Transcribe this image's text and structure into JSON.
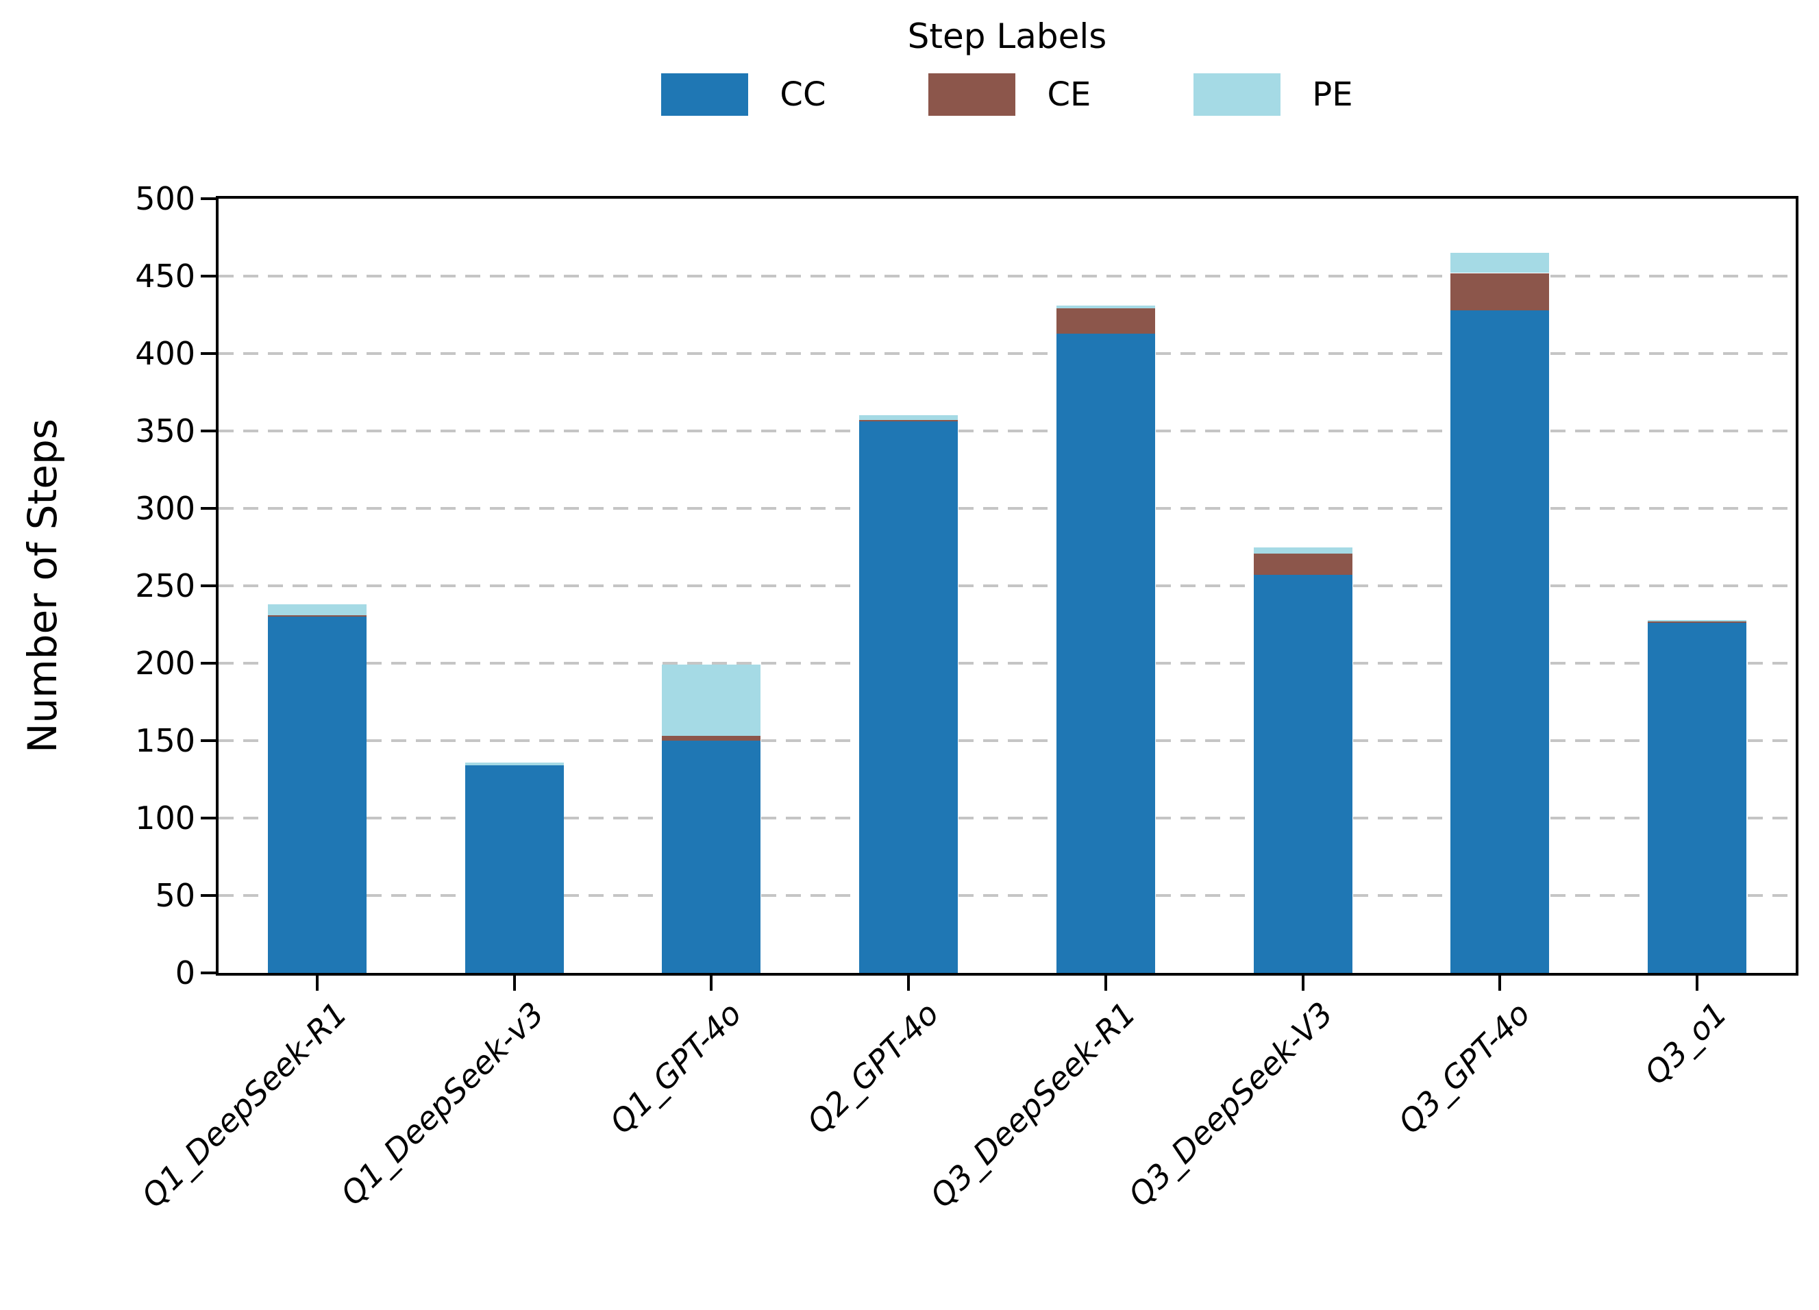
{
  "chart_data": {
    "type": "bar",
    "stacked": true,
    "title": "Step Labels",
    "ylabel": "Number of Steps",
    "xlabel": "",
    "ylim": [
      0,
      500
    ],
    "yticks": [
      0,
      50,
      100,
      150,
      200,
      250,
      300,
      350,
      400,
      450,
      500
    ],
    "grid": "horizontal-dashed",
    "legend_position": "top-center",
    "categories": [
      "Q1_DeepSeek-R1",
      "Q1_DeepSeek-v3",
      "Q1_GPT-4o",
      "Q2_GPT-4o",
      "Q3_DeepSeek-R1",
      "Q3_DeepSeek-V3",
      "Q3_GPT-4o",
      "Q3_o1"
    ],
    "series": [
      {
        "name": "CC",
        "color": "#1f77b4",
        "values": [
          230,
          134,
          150,
          356,
          413,
          257,
          428,
          226
        ]
      },
      {
        "name": "CE",
        "color": "#8c564b",
        "values": [
          1,
          0,
          3,
          1,
          16,
          14,
          24,
          1
        ]
      },
      {
        "name": "PE",
        "color": "#a5dae5",
        "values": [
          7,
          2,
          46,
          3,
          2,
          4,
          13,
          1
        ]
      }
    ],
    "totals": [
      238,
      136,
      199,
      360,
      431,
      275,
      465,
      228
    ]
  }
}
